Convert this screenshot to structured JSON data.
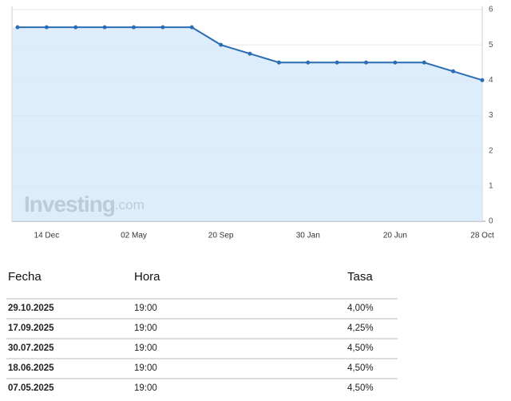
{
  "chart_data": {
    "type": "area",
    "categories": [
      null,
      "14 Dec",
      null,
      null,
      "02 May",
      null,
      null,
      "20 Sep",
      null,
      null,
      "30 Jan",
      null,
      null,
      "20 Jun",
      null,
      null,
      "28 Oct"
    ],
    "values": [
      5.5,
      5.5,
      5.5,
      5.5,
      5.5,
      5.5,
      5.5,
      5.0,
      4.75,
      4.5,
      4.5,
      4.5,
      4.5,
      4.5,
      4.5,
      4.25,
      4.0
    ],
    "color": "#2a6db3",
    "fill_color": "#d6e9fb",
    "ylim": [
      0,
      6
    ],
    "yticks": [
      0,
      1,
      2,
      3,
      4,
      5,
      6
    ],
    "grid": true,
    "watermark": {
      "brand": "Investing",
      "suffix": ".com"
    }
  },
  "table": {
    "columns": [
      "Fecha",
      "Hora",
      "Tasa"
    ],
    "rows": [
      [
        "29.10.2025",
        "19:00",
        "4,00%"
      ],
      [
        "17.09.2025",
        "19:00",
        "4,25%"
      ],
      [
        "30.07.2025",
        "19:00",
        "4,50%"
      ],
      [
        "18.06.2025",
        "19:00",
        "4,50%"
      ],
      [
        "07.05.2025",
        "19:00",
        "4,50%"
      ]
    ]
  }
}
